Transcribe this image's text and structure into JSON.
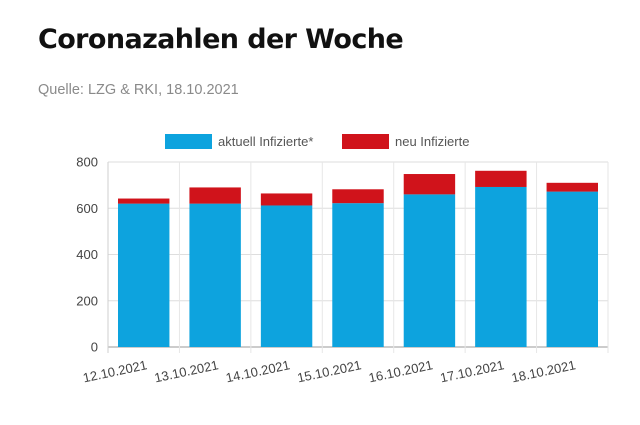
{
  "header": {
    "title": "Coronazahlen der Woche",
    "source": "Quelle: LZG & RKI, 18.10.2021"
  },
  "chart_data": {
    "type": "bar",
    "stacked": true,
    "categories": [
      "12.10.2021",
      "13.10.2021",
      "14.10.2021",
      "15.10.2021",
      "16.10.2021",
      "17.10.2021",
      "18.10.2021"
    ],
    "series": [
      {
        "name": "aktuell Infizierte*",
        "color": "#0da3de",
        "values": [
          620,
          620,
          612,
          622,
          660,
          692,
          672
        ]
      },
      {
        "name": "neu Infizierte",
        "color": "#d0131b",
        "values": [
          22,
          70,
          52,
          60,
          88,
          70,
          38
        ]
      }
    ],
    "yticks": [
      0,
      200,
      400,
      600,
      800
    ],
    "ylim": [
      0,
      800
    ],
    "grid": true,
    "legend_position": "top"
  }
}
